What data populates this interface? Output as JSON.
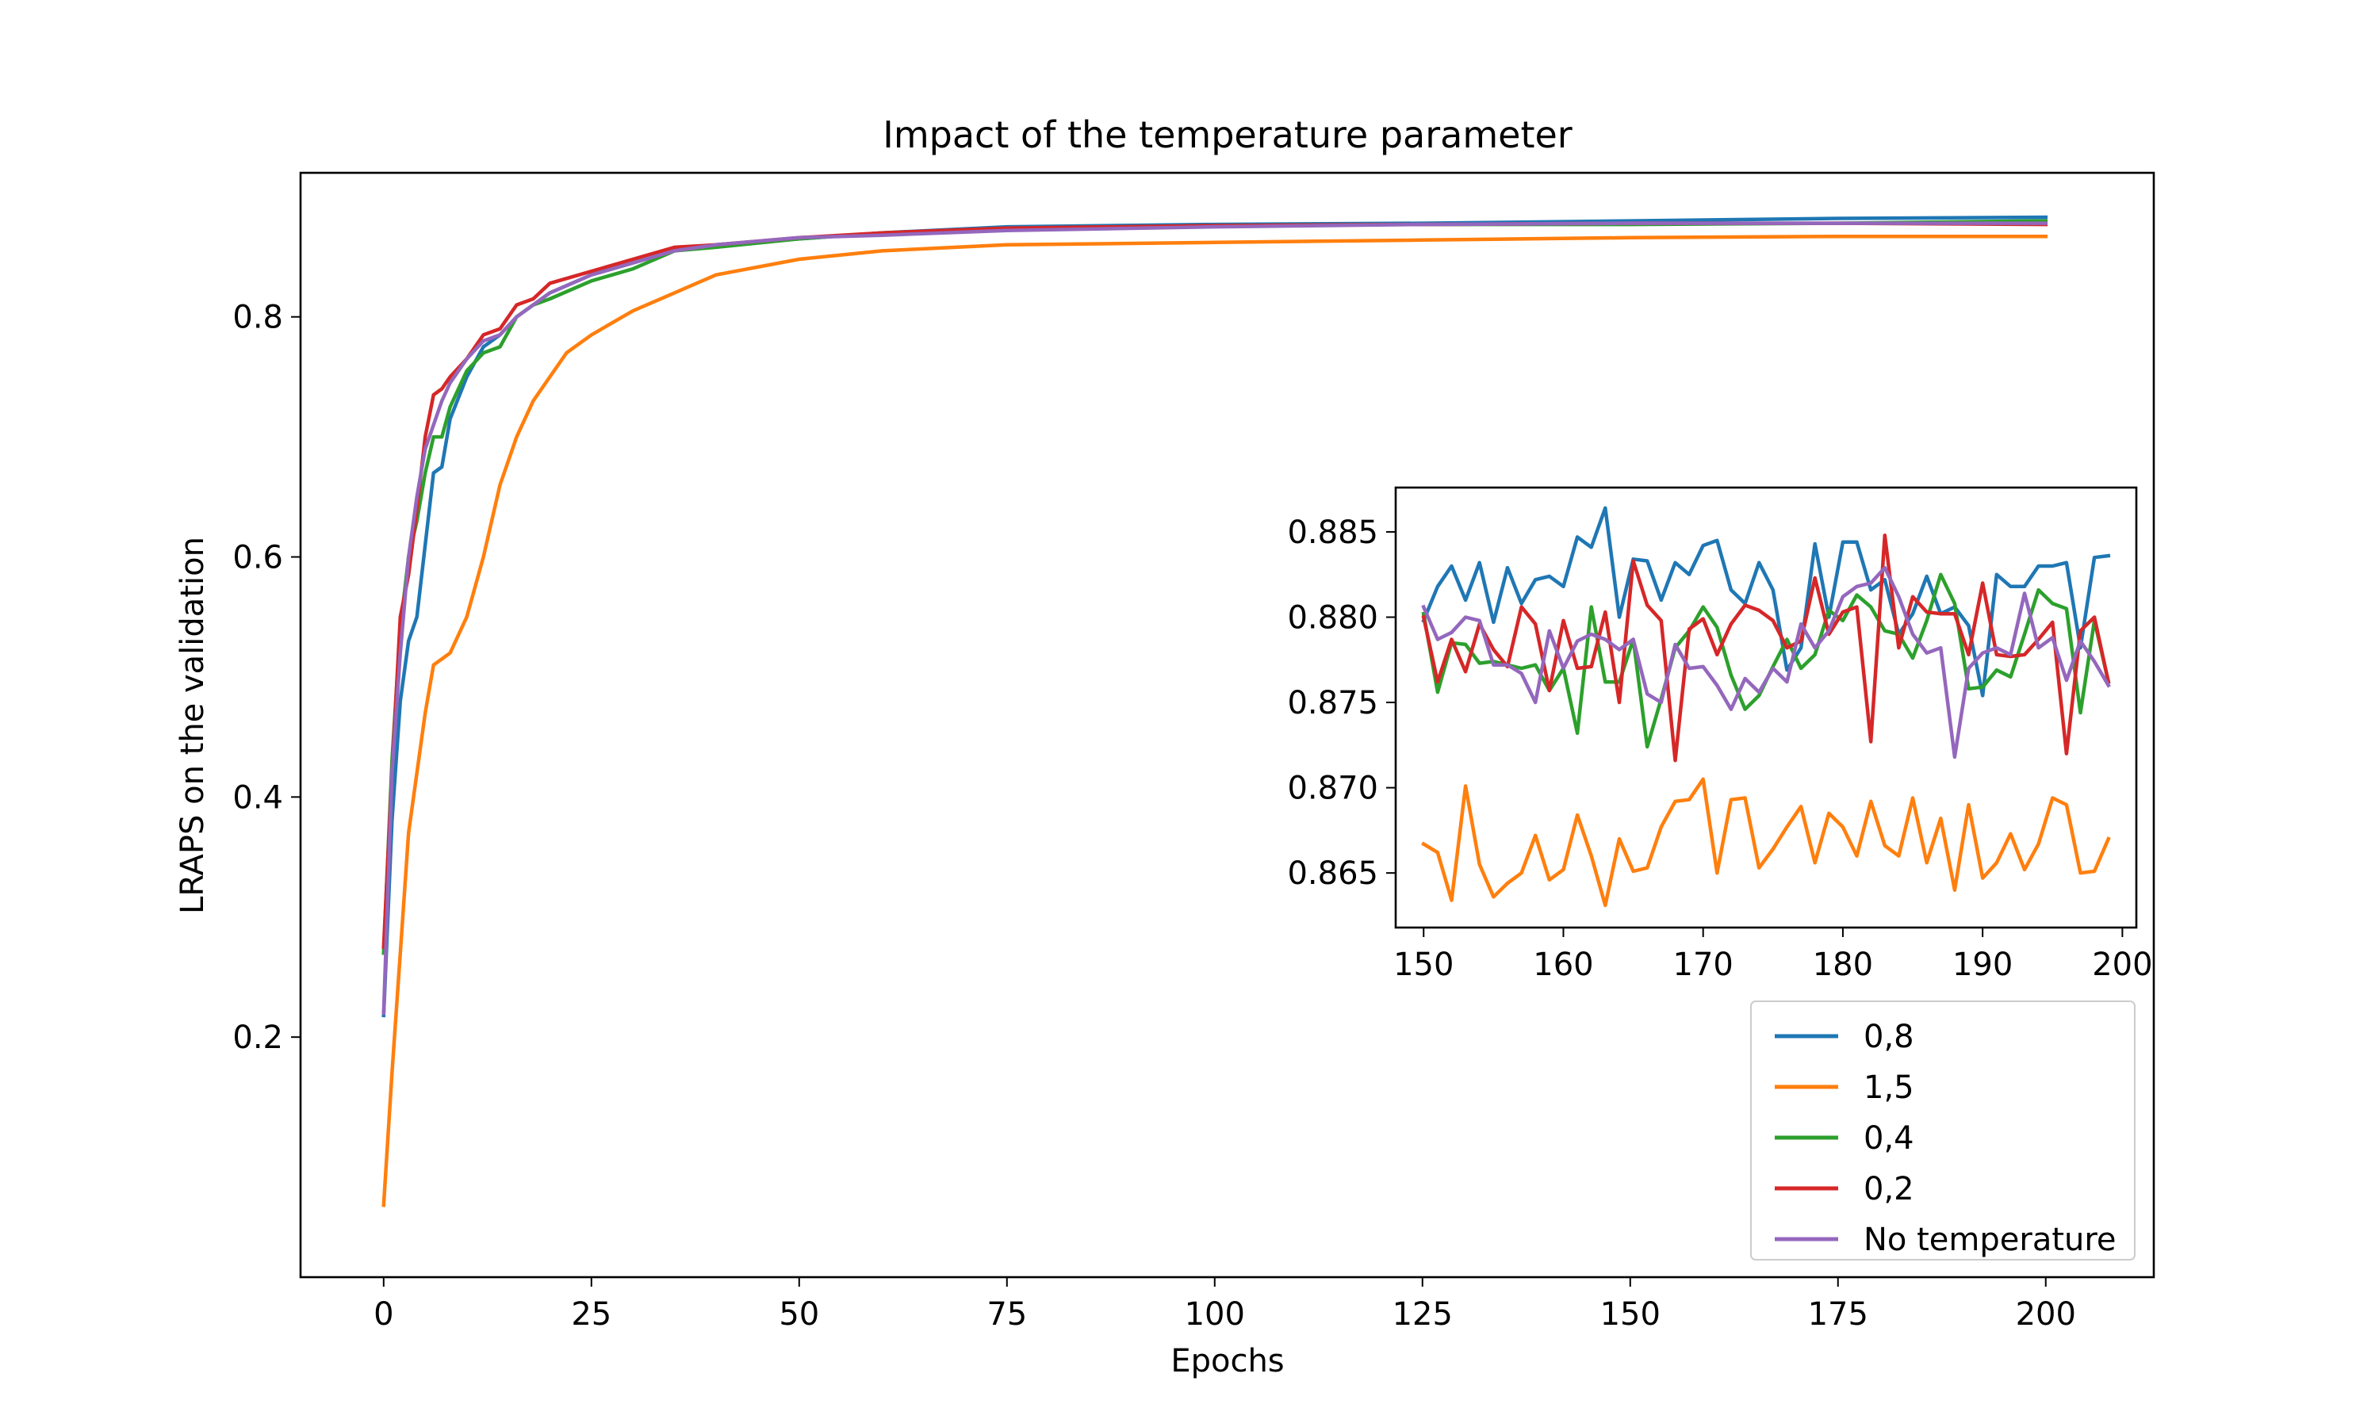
{
  "chart_data": [
    {
      "id": "main",
      "type": "line",
      "title": "Impact of the temperature parameter",
      "xlabel": "Epochs",
      "ylabel": "LRAPS on the validation",
      "xlim": [
        -10,
        213
      ],
      "ylim": [
        0.0,
        0.92
      ],
      "xticks": [
        0,
        25,
        50,
        75,
        100,
        125,
        150,
        175,
        200
      ],
      "xtick_labels": [
        "0",
        "25",
        "50",
        "75",
        "100",
        "125",
        "150",
        "175",
        "200"
      ],
      "yticks": [
        0.2,
        0.4,
        0.6,
        0.8
      ],
      "ytick_labels": [
        "0.2",
        "0.4",
        "0.6",
        "0.8"
      ],
      "grid": false,
      "legend_position": "bottom-right",
      "series": [
        {
          "name": "0,8",
          "color": "#1f77b4",
          "x": [
            0,
            1,
            2,
            3,
            4,
            5,
            6,
            7,
            8,
            10,
            12,
            14,
            16,
            18,
            20,
            25,
            30,
            35,
            40,
            50,
            60,
            75,
            100,
            125,
            150,
            175,
            200
          ],
          "y": [
            0.218,
            0.38,
            0.48,
            0.53,
            0.55,
            0.61,
            0.67,
            0.675,
            0.715,
            0.75,
            0.775,
            0.785,
            0.8,
            0.81,
            0.82,
            0.835,
            0.845,
            0.855,
            0.86,
            0.865,
            0.87,
            0.875,
            0.877,
            0.878,
            0.88,
            0.882,
            0.883
          ]
        },
        {
          "name": "1,5",
          "color": "#ff7f0e",
          "x": [
            0,
            1,
            2,
            3,
            4,
            5,
            6,
            8,
            10,
            12,
            14,
            16,
            18,
            20,
            22,
            25,
            30,
            35,
            40,
            50,
            60,
            75,
            100,
            125,
            150,
            175,
            200
          ],
          "y": [
            0.06,
            0.17,
            0.27,
            0.37,
            0.42,
            0.47,
            0.51,
            0.52,
            0.55,
            0.6,
            0.66,
            0.7,
            0.73,
            0.75,
            0.77,
            0.785,
            0.805,
            0.82,
            0.835,
            0.848,
            0.855,
            0.86,
            0.862,
            0.864,
            0.866,
            0.867,
            0.867
          ]
        },
        {
          "name": "0,4",
          "color": "#2ca02c",
          "x": [
            0,
            1,
            2,
            3,
            4,
            5,
            6,
            7,
            8,
            10,
            12,
            14,
            16,
            18,
            20,
            25,
            30,
            35,
            40,
            50,
            60,
            75,
            100,
            125,
            150,
            175,
            200
          ],
          "y": [
            0.27,
            0.43,
            0.54,
            0.6,
            0.63,
            0.67,
            0.7,
            0.7,
            0.725,
            0.755,
            0.77,
            0.775,
            0.8,
            0.81,
            0.815,
            0.83,
            0.84,
            0.855,
            0.858,
            0.865,
            0.87,
            0.873,
            0.876,
            0.877,
            0.877,
            0.878,
            0.88
          ]
        },
        {
          "name": "0,2",
          "color": "#d62728",
          "x": [
            0,
            1,
            2,
            3,
            4,
            5,
            6,
            7,
            8,
            10,
            12,
            14,
            16,
            18,
            20,
            25,
            30,
            35,
            40,
            50,
            60,
            75,
            100,
            125,
            150,
            175,
            200
          ],
          "y": [
            0.275,
            0.42,
            0.55,
            0.585,
            0.64,
            0.7,
            0.735,
            0.74,
            0.75,
            0.765,
            0.785,
            0.79,
            0.81,
            0.815,
            0.828,
            0.838,
            0.848,
            0.858,
            0.86,
            0.866,
            0.87,
            0.874,
            0.876,
            0.877,
            0.878,
            0.878,
            0.877
          ]
        },
        {
          "name": "No temperature",
          "color": "#9467bd",
          "x": [
            0,
            1,
            2,
            3,
            4,
            5,
            6,
            7,
            8,
            10,
            12,
            14,
            16,
            18,
            20,
            25,
            30,
            35,
            40,
            50,
            60,
            75,
            100,
            125,
            150,
            175,
            200
          ],
          "y": [
            0.22,
            0.42,
            0.52,
            0.6,
            0.65,
            0.69,
            0.71,
            0.73,
            0.745,
            0.765,
            0.78,
            0.785,
            0.8,
            0.81,
            0.82,
            0.835,
            0.845,
            0.855,
            0.86,
            0.866,
            0.868,
            0.872,
            0.875,
            0.877,
            0.878,
            0.878,
            0.878
          ]
        }
      ]
    },
    {
      "id": "inset",
      "type": "line",
      "title": "",
      "xlabel": "",
      "ylabel": "",
      "xlim": [
        148,
        201
      ],
      "ylim": [
        0.8618,
        0.8876
      ],
      "xticks": [
        150,
        160,
        170,
        180,
        190,
        200
      ],
      "xtick_labels": [
        "150",
        "160",
        "170",
        "180",
        "190",
        "200"
      ],
      "yticks": [
        0.865,
        0.87,
        0.875,
        0.88,
        0.885
      ],
      "ytick_labels": [
        "0.865",
        "0.870",
        "0.875",
        "0.880",
        "0.885"
      ],
      "grid": false,
      "x_start": 150,
      "series": [
        {
          "name": "0,8",
          "color": "#1f77b4",
          "y": [
            0.8798,
            0.8818,
            0.883,
            0.881,
            0.8832,
            0.8797,
            0.8829,
            0.8808,
            0.8822,
            0.8824,
            0.8818,
            0.8847,
            0.8841,
            0.8864,
            0.88,
            0.8834,
            0.8833,
            0.881,
            0.8832,
            0.8825,
            0.8842,
            0.8845,
            0.8816,
            0.8808,
            0.8832,
            0.8816,
            0.8769,
            0.8782,
            0.8843,
            0.88,
            0.8844,
            0.8844,
            0.8816,
            0.8822,
            0.879,
            0.8802,
            0.8824,
            0.8802,
            0.8806,
            0.8795,
            0.8754,
            0.8825,
            0.8818,
            0.8818,
            0.883,
            0.883,
            0.8832,
            0.8782,
            0.8835,
            0.8836
          ]
        },
        {
          "name": "1,5",
          "color": "#ff7f0e",
          "y": [
            0.8667,
            0.8662,
            0.8634,
            0.8701,
            0.8655,
            0.8636,
            0.8644,
            0.865,
            0.8672,
            0.8646,
            0.8652,
            0.8684,
            0.866,
            0.8631,
            0.867,
            0.8651,
            0.8653,
            0.8677,
            0.8692,
            0.8693,
            0.8705,
            0.865,
            0.8693,
            0.8694,
            0.8653,
            0.8664,
            0.8677,
            0.8689,
            0.8656,
            0.8685,
            0.8677,
            0.866,
            0.8692,
            0.8666,
            0.866,
            0.8694,
            0.8656,
            0.8682,
            0.864,
            0.869,
            0.8647,
            0.8656,
            0.8673,
            0.8652,
            0.8667,
            0.8694,
            0.869,
            0.865,
            0.8651,
            0.867
          ]
        },
        {
          "name": "0,4",
          "color": "#2ca02c",
          "y": [
            0.8802,
            0.8756,
            0.8785,
            0.8784,
            0.8773,
            0.8774,
            0.8772,
            0.877,
            0.8772,
            0.8757,
            0.877,
            0.8732,
            0.8806,
            0.8762,
            0.8762,
            0.8787,
            0.8724,
            0.8752,
            0.8782,
            0.8792,
            0.8806,
            0.8794,
            0.8766,
            0.8746,
            0.8754,
            0.8771,
            0.8787,
            0.877,
            0.8778,
            0.8804,
            0.8798,
            0.8813,
            0.8806,
            0.8792,
            0.879,
            0.8776,
            0.8798,
            0.8825,
            0.8808,
            0.8758,
            0.8759,
            0.8769,
            0.8765,
            0.879,
            0.8816,
            0.8808,
            0.8805,
            0.8744,
            0.8798,
            0.8762
          ]
        },
        {
          "name": "0,2",
          "color": "#d62728",
          "y": [
            0.88,
            0.8762,
            0.8787,
            0.8768,
            0.8796,
            0.8781,
            0.8771,
            0.8806,
            0.8796,
            0.8757,
            0.8798,
            0.877,
            0.8771,
            0.8803,
            0.875,
            0.8833,
            0.8807,
            0.8798,
            0.8716,
            0.8793,
            0.8799,
            0.8778,
            0.8796,
            0.8807,
            0.8804,
            0.8798,
            0.8782,
            0.8786,
            0.8823,
            0.879,
            0.8803,
            0.8806,
            0.8727,
            0.8848,
            0.8782,
            0.8812,
            0.8803,
            0.8802,
            0.8802,
            0.8778,
            0.882,
            0.8778,
            0.8777,
            0.8778,
            0.8787,
            0.8797,
            0.872,
            0.8792,
            0.88,
            0.8762
          ]
        },
        {
          "name": "No temperature",
          "color": "#9467bd",
          "y": [
            0.8806,
            0.8787,
            0.8791,
            0.88,
            0.8798,
            0.8772,
            0.8772,
            0.8767,
            0.875,
            0.8792,
            0.877,
            0.8786,
            0.879,
            0.8787,
            0.8781,
            0.8787,
            0.8755,
            0.875,
            0.8784,
            0.877,
            0.8771,
            0.876,
            0.8746,
            0.8764,
            0.8756,
            0.877,
            0.8762,
            0.8796,
            0.8782,
            0.8792,
            0.8812,
            0.8818,
            0.882,
            0.8829,
            0.8812,
            0.879,
            0.8779,
            0.8782,
            0.8718,
            0.877,
            0.8779,
            0.8782,
            0.8778,
            0.8814,
            0.8782,
            0.8788,
            0.8763,
            0.8786,
            0.8774,
            0.876
          ]
        }
      ]
    }
  ]
}
